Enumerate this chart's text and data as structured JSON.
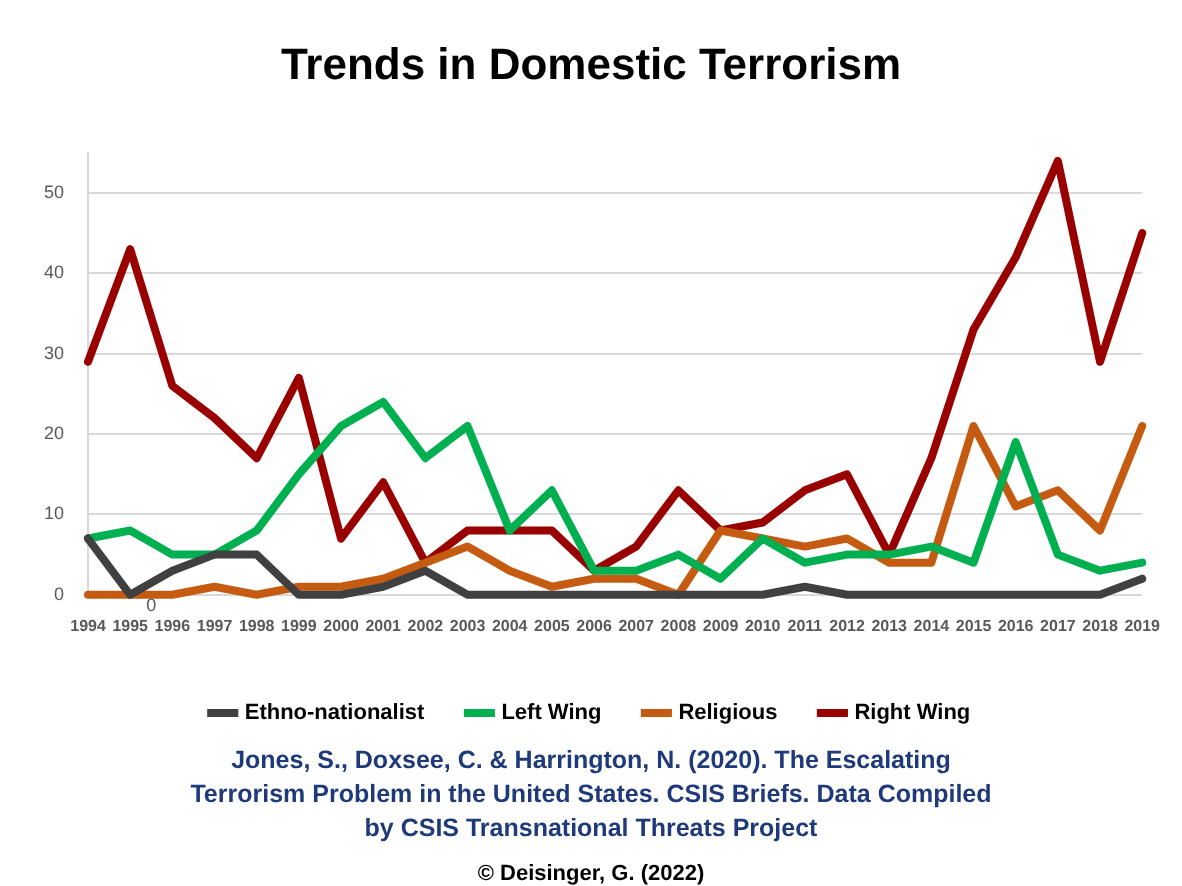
{
  "chart_data": {
    "type": "line",
    "title": "Trends in Domestic Terrorism",
    "categories": [
      "1994",
      "1995",
      "1996",
      "1997",
      "1998",
      "1999",
      "2000",
      "2001",
      "2002",
      "2003",
      "2004",
      "2005",
      "2006",
      "2007",
      "2008",
      "2009",
      "2010",
      "2011",
      "2012",
      "2013",
      "2014",
      "2015",
      "2016",
      "2017",
      "2018",
      "2019"
    ],
    "series": [
      {
        "name": "Ethno-nationalist",
        "color": "#404040",
        "values": [
          7,
          0,
          3,
          5,
          5,
          0,
          0,
          1,
          3,
          0,
          0,
          0,
          0,
          0,
          0,
          0,
          0,
          1,
          0,
          0,
          0,
          0,
          0,
          0,
          0,
          2
        ]
      },
      {
        "name": "Left Wing",
        "color": "#00b050",
        "values": [
          7,
          8,
          5,
          5,
          8,
          15,
          21,
          24,
          17,
          21,
          8,
          13,
          3,
          3,
          5,
          2,
          7,
          4,
          5,
          5,
          6,
          4,
          19,
          5,
          3,
          4
        ]
      },
      {
        "name": "Religious",
        "color": "#c55a11",
        "values": [
          0,
          0,
          0,
          1,
          0,
          1,
          1,
          2,
          4,
          6,
          3,
          1,
          2,
          2,
          0,
          8,
          7,
          6,
          7,
          4,
          4,
          21,
          11,
          13,
          8,
          21
        ]
      },
      {
        "name": "Right Wing",
        "color": "#990000",
        "values": [
          29,
          43,
          26,
          22,
          17,
          27,
          7,
          14,
          4,
          8,
          8,
          8,
          3,
          6,
          13,
          8,
          9,
          13,
          15,
          5,
          17,
          33,
          42,
          54,
          29,
          45
        ]
      }
    ],
    "ylim": [
      0,
      55
    ],
    "yticks": [
      0,
      10,
      20,
      30,
      40,
      50
    ],
    "grid": "y",
    "legend": "bottom",
    "marker": "none",
    "line_style": "solid",
    "annotations": [
      {
        "text": "0",
        "x": "1995",
        "y": 0
      },
      "Jones, S., Doxsee, C. & Harrington, N. (2020).  The Escalating Terrorism Problem in the United States. CSIS Briefs. Data Compiled by CSIS Transnational Threats Project",
      "© Deisinger, G. (2022)"
    ]
  }
}
